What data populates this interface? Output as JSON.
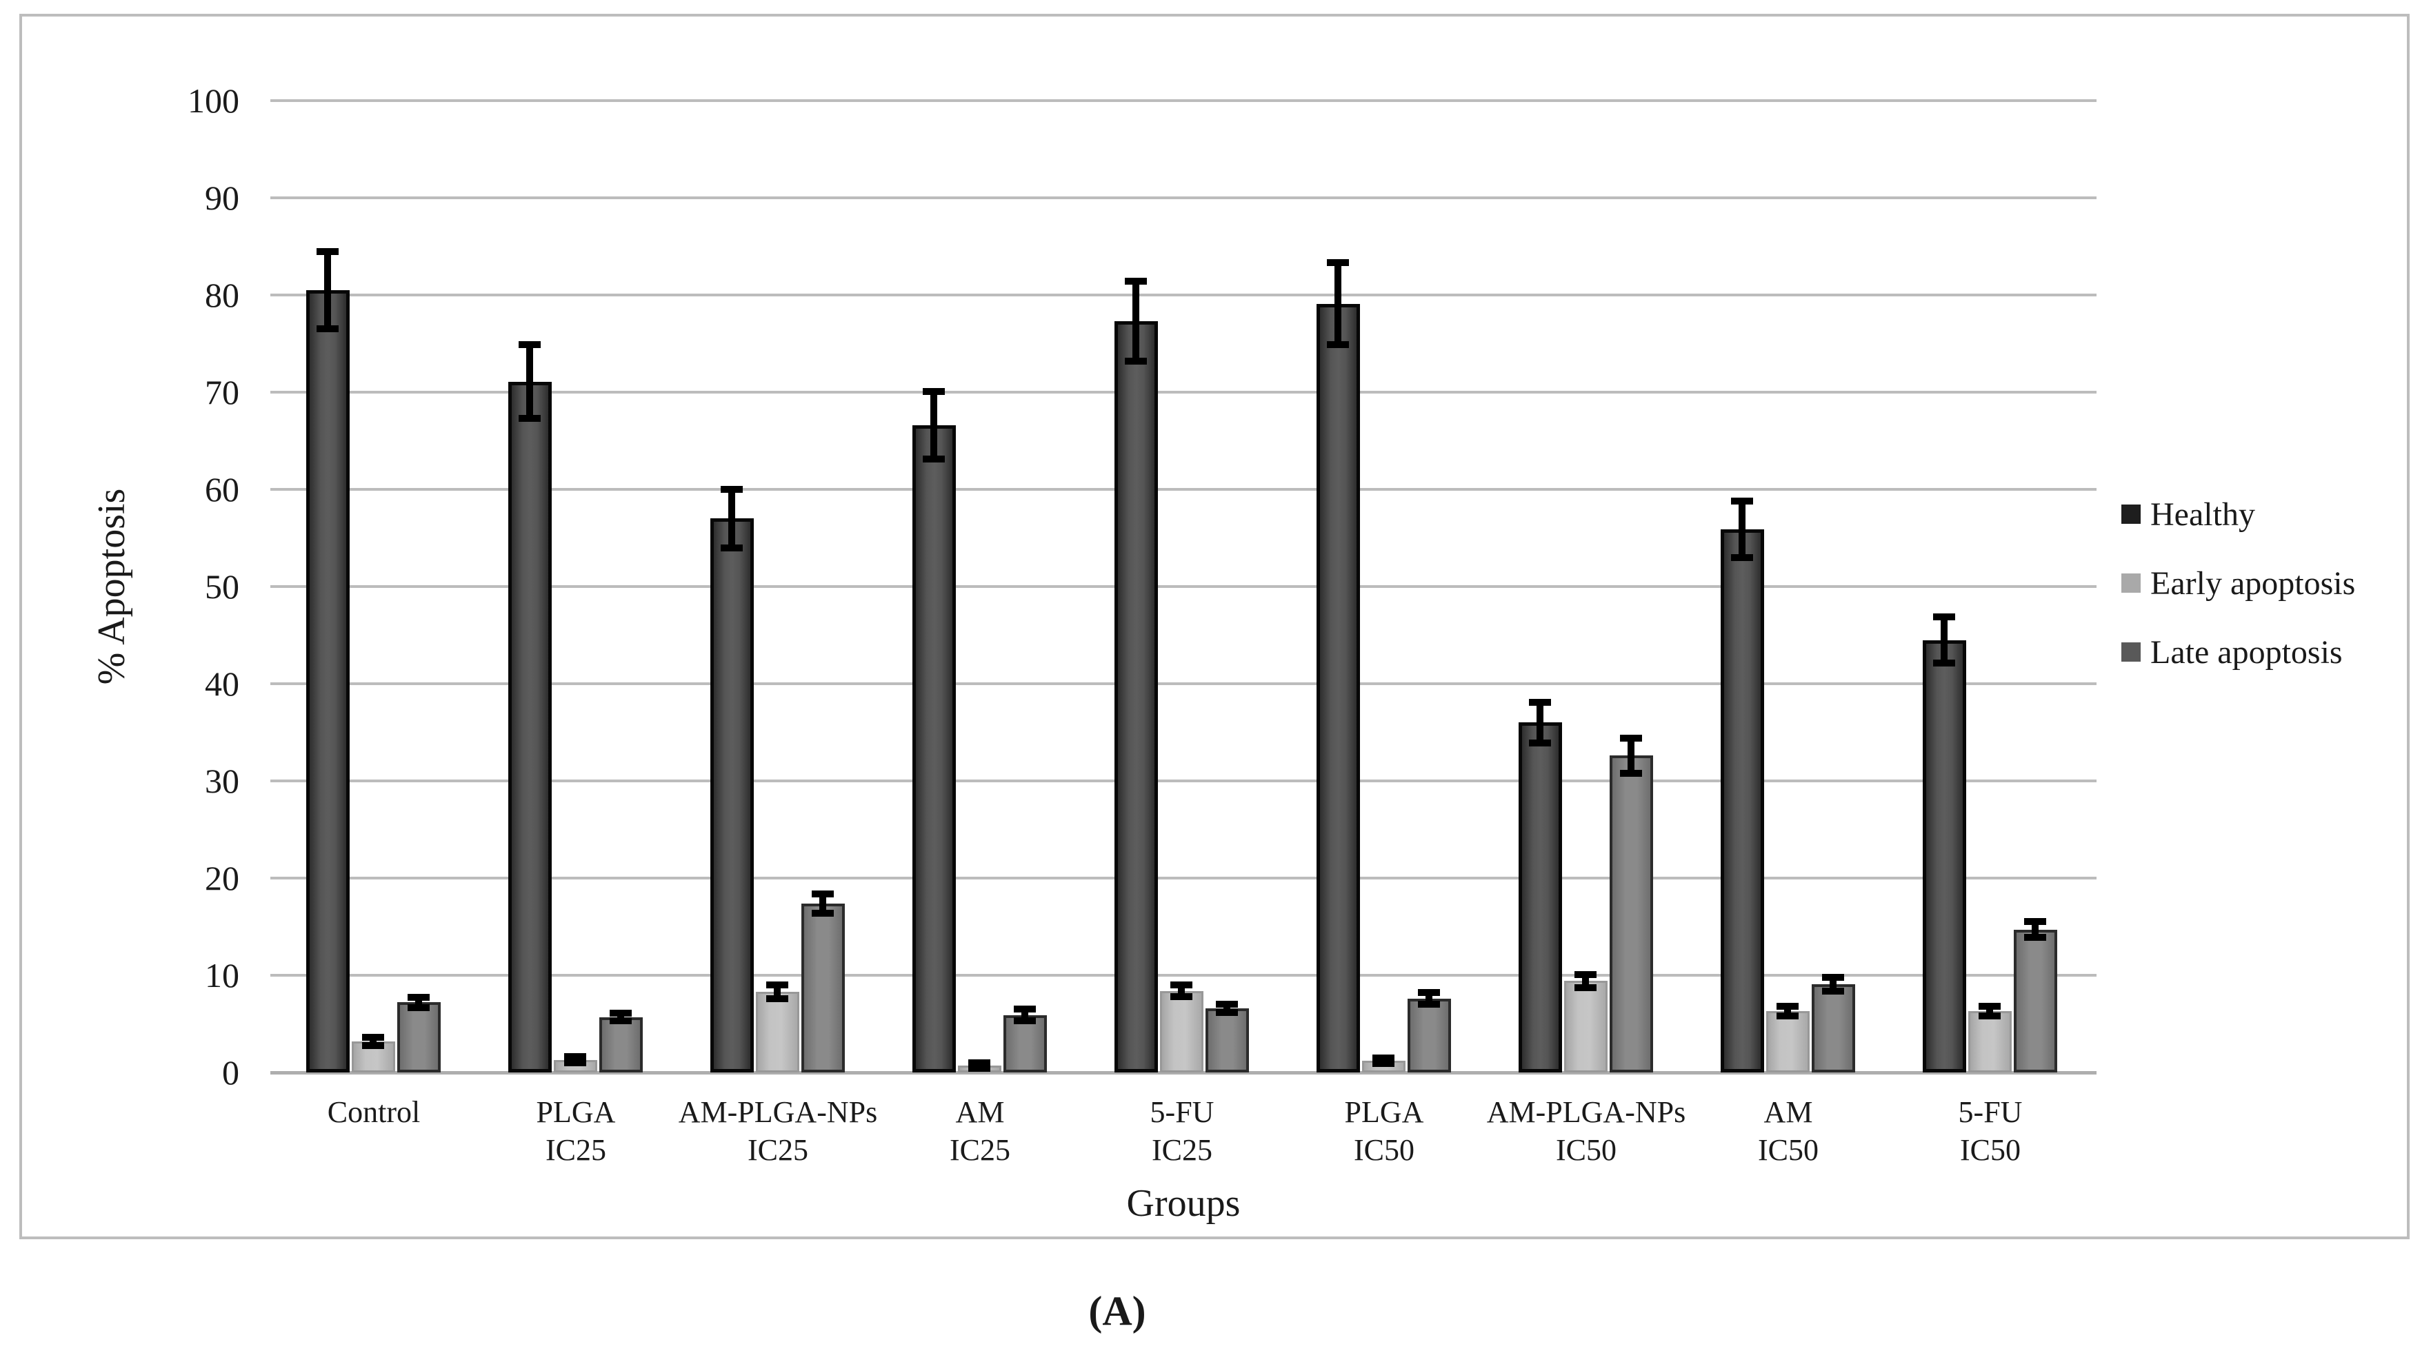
{
  "caption": "(A)",
  "chart_data": {
    "type": "bar",
    "title": "",
    "xlabel": "Groups",
    "ylabel": "% Apoptosis",
    "ylim": [
      0,
      100
    ],
    "ytick_interval": 10,
    "grid": true,
    "legend_position": "right",
    "categories": [
      "Control",
      "PLGA\nIC25",
      "AM-PLGA-NPs\nIC25",
      "AM\nIC25",
      "5-FU\nIC25",
      "PLGA\nIC50",
      "AM-PLGA-NPs\nIC50",
      "AM\nIC50",
      "5-FU\nIC50"
    ],
    "series": [
      {
        "name": "Healthy",
        "color": "#474747",
        "legend_color": "#1e1e1e",
        "values": [
          80.5,
          71.1,
          57.0,
          66.6,
          77.3,
          79.1,
          36.0,
          55.9,
          44.5
        ],
        "errors": [
          4.0,
          3.8,
          3.0,
          3.5,
          4.1,
          4.2,
          2.1,
          2.9,
          2.4
        ]
      },
      {
        "name": "Early apoptosis",
        "color": "#b9b9b9",
        "legend_color": "#a9a9a9",
        "values": [
          3.2,
          1.3,
          8.3,
          0.7,
          8.4,
          1.2,
          9.4,
          6.3,
          6.3
        ],
        "errors": [
          0.4,
          0.3,
          0.7,
          0.3,
          0.6,
          0.3,
          0.7,
          0.5,
          0.5
        ]
      },
      {
        "name": "Late apoptosis",
        "color": "#7d7d7d",
        "legend_color": "#595959",
        "values": [
          7.2,
          5.7,
          17.4,
          5.9,
          6.6,
          7.6,
          32.6,
          9.1,
          14.7
        ],
        "errors": [
          0.5,
          0.4,
          1.0,
          0.6,
          0.4,
          0.6,
          1.8,
          0.7,
          0.8
        ]
      }
    ]
  }
}
